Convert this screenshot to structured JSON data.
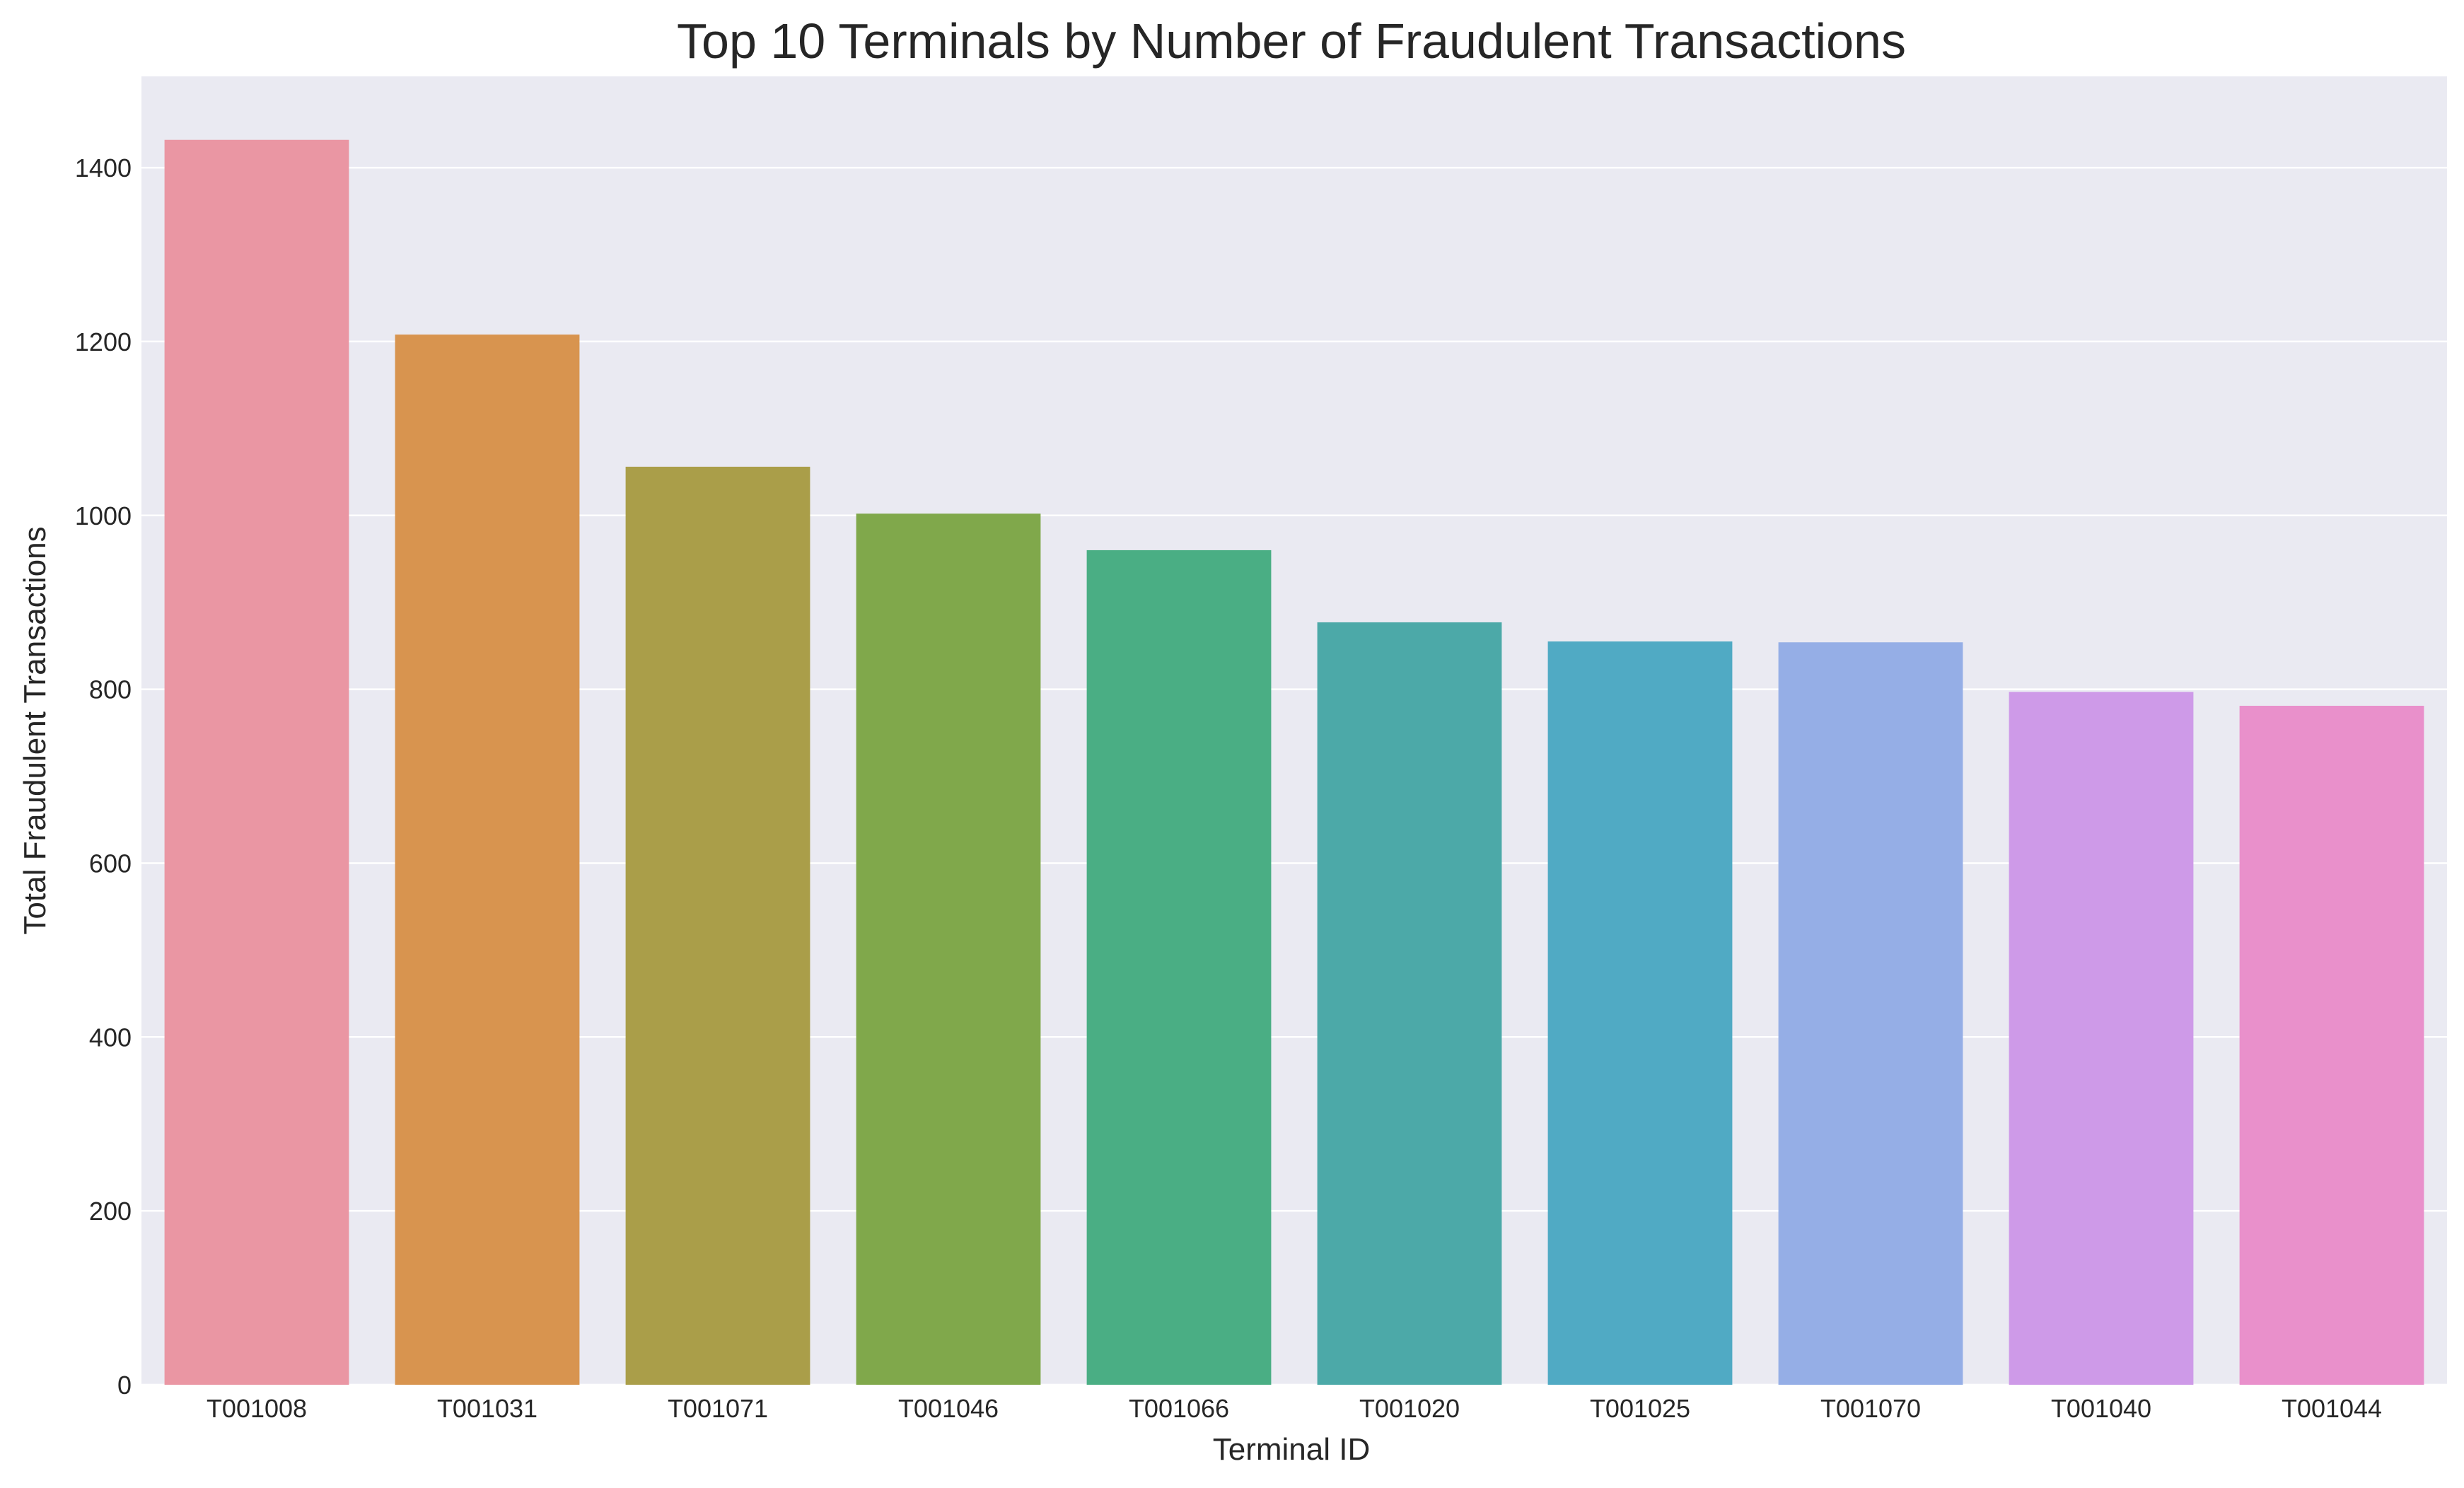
{
  "chart_data": {
    "type": "bar",
    "title": "Top 10 Terminals by Number of Fraudulent Transactions",
    "xlabel": "Terminal ID",
    "ylabel": "Total Fraudulent Transactions",
    "categories": [
      "T001008",
      "T001031",
      "T001071",
      "T001046",
      "T001066",
      "T001020",
      "T001025",
      "T001070",
      "T001040",
      "T001044"
    ],
    "values": [
      1432,
      1208,
      1056,
      1002,
      960,
      877,
      855,
      854,
      797,
      781
    ],
    "colors": [
      "#ea96a3",
      "#d8944f",
      "#aa9e49",
      "#80a84b",
      "#4aae84",
      "#4ca9a8",
      "#50aac4",
      "#95aee6",
      "#ce9ae8",
      "#e990cb"
    ],
    "ylim": [
      0,
      1505
    ],
    "yticks": [
      0,
      200,
      400,
      600,
      800,
      1000,
      1200,
      1400
    ],
    "grid": true,
    "background": "#eaeaf2",
    "gridColor": "#ffffff"
  }
}
